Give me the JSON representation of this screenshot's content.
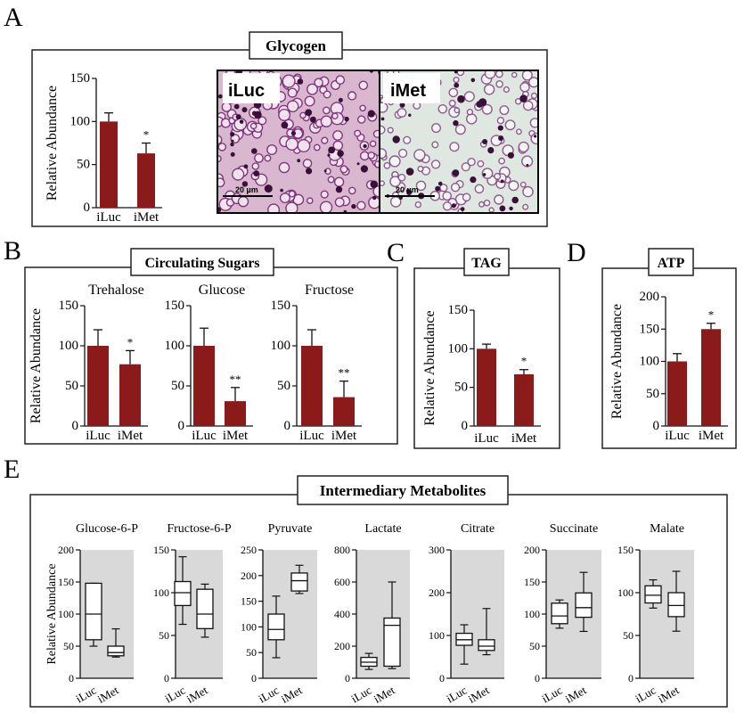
{
  "panels": {
    "A": {
      "letter": "A",
      "title": "Glycogen"
    },
    "B": {
      "letter": "B",
      "title": "Circulating Sugars"
    },
    "C": {
      "letter": "C",
      "title": "TAG"
    },
    "D": {
      "letter": "D",
      "title": "ATP"
    },
    "E": {
      "letter": "E",
      "title": "Intermediary Metabolites"
    }
  },
  "micrographs": {
    "left": {
      "label": "iLuc",
      "scale_bar": "20 µm"
    },
    "right": {
      "label": "iMet",
      "scale_bar": "20 µm"
    }
  },
  "colors": {
    "bar": "#8b1a1a",
    "box_bg": "#d9d9d9"
  },
  "chart_data": [
    {
      "id": "glycogen",
      "type": "bar",
      "title": "",
      "ylabel": "Relative Abundance",
      "categories": [
        "iLuc",
        "iMet"
      ],
      "values": [
        100,
        63
      ],
      "errors": [
        10,
        12
      ],
      "significance": [
        "",
        "*"
      ],
      "ylim": [
        0,
        150
      ],
      "yticks": [
        0,
        50,
        100,
        150
      ]
    },
    {
      "id": "trehalose",
      "type": "bar",
      "title": "Trehalose",
      "ylabel": "Relative Abundance",
      "categories": [
        "iLuc",
        "iMet"
      ],
      "values": [
        100,
        77
      ],
      "errors": [
        20,
        17
      ],
      "significance": [
        "",
        "*"
      ],
      "ylim": [
        0,
        150
      ],
      "yticks": [
        0,
        50,
        100,
        150
      ]
    },
    {
      "id": "glucose",
      "type": "bar",
      "title": "Glucose",
      "ylabel": "",
      "categories": [
        "iLuc",
        "iMet"
      ],
      "values": [
        100,
        31
      ],
      "errors": [
        22,
        17
      ],
      "significance": [
        "",
        "**"
      ],
      "ylim": [
        0,
        150
      ],
      "yticks": [
        0,
        50,
        100,
        150
      ]
    },
    {
      "id": "fructose",
      "type": "bar",
      "title": "Fructose",
      "ylabel": "",
      "categories": [
        "iLuc",
        "iMet"
      ],
      "values": [
        100,
        36
      ],
      "errors": [
        20,
        20
      ],
      "significance": [
        "",
        "**"
      ],
      "ylim": [
        0,
        150
      ],
      "yticks": [
        0,
        50,
        100,
        150
      ]
    },
    {
      "id": "tag",
      "type": "bar",
      "title": "",
      "ylabel": "Relative Abundance",
      "categories": [
        "iLuc",
        "iMet"
      ],
      "values": [
        100,
        67
      ],
      "errors": [
        6,
        6
      ],
      "significance": [
        "",
        "*"
      ],
      "ylim": [
        0,
        150
      ],
      "yticks": [
        0,
        50,
        100,
        150
      ]
    },
    {
      "id": "atp",
      "type": "bar",
      "title": "",
      "ylabel": "Relative Abundance",
      "categories": [
        "iLuc",
        "iMet"
      ],
      "values": [
        100,
        150
      ],
      "errors": [
        12,
        9
      ],
      "significance": [
        "",
        "*"
      ],
      "ylim": [
        0,
        200
      ],
      "yticks": [
        0,
        50,
        100,
        150,
        200
      ]
    },
    {
      "id": "glucose6p",
      "type": "box",
      "title": "Glucose-6-P",
      "ylabel": "Relative Abundance",
      "categories": [
        "iLuc",
        "iMet"
      ],
      "ylim": [
        0,
        200
      ],
      "yticks": [
        0,
        50,
        100,
        150,
        200
      ],
      "boxes": [
        {
          "min": 50,
          "q1": 60,
          "median": 100,
          "q3": 148,
          "max": 148
        },
        {
          "min": 33,
          "q1": 35,
          "median": 40,
          "q3": 50,
          "max": 77
        }
      ]
    },
    {
      "id": "fructose6p",
      "type": "box",
      "title": "Fructose-6-P",
      "ylabel": "",
      "categories": [
        "iLuc",
        "iMet"
      ],
      "ylim": [
        0,
        150
      ],
      "yticks": [
        0,
        50,
        100,
        150
      ],
      "boxes": [
        {
          "min": 63,
          "q1": 85,
          "median": 100,
          "q3": 113,
          "max": 142
        },
        {
          "min": 48,
          "q1": 58,
          "median": 75,
          "q3": 104,
          "max": 110
        }
      ]
    },
    {
      "id": "pyruvate",
      "type": "box",
      "title": "Pyruvate",
      "ylabel": "",
      "categories": [
        "iLuc",
        "iMet"
      ],
      "ylim": [
        0,
        250
      ],
      "yticks": [
        0,
        50,
        100,
        150,
        200,
        250
      ],
      "boxes": [
        {
          "min": 40,
          "q1": 75,
          "median": 95,
          "q3": 125,
          "max": 160
        },
        {
          "min": 165,
          "q1": 170,
          "median": 190,
          "q3": 205,
          "max": 220
        }
      ]
    },
    {
      "id": "lactate",
      "type": "box",
      "title": "Lactate",
      "ylabel": "",
      "categories": [
        "iLuc",
        "iMet"
      ],
      "ylim": [
        0,
        800
      ],
      "yticks": [
        0,
        200,
        400,
        600,
        800
      ],
      "boxes": [
        {
          "min": 55,
          "q1": 75,
          "median": 100,
          "q3": 130,
          "max": 155
        },
        {
          "min": 60,
          "q1": 75,
          "median": 330,
          "q3": 375,
          "max": 600
        }
      ]
    },
    {
      "id": "citrate",
      "type": "box",
      "title": "Citrate",
      "ylabel": "",
      "categories": [
        "iLuc",
        "iMet"
      ],
      "ylim": [
        0,
        300
      ],
      "yticks": [
        0,
        100,
        200,
        300
      ],
      "boxes": [
        {
          "min": 33,
          "q1": 77,
          "median": 90,
          "q3": 105,
          "max": 125
        },
        {
          "min": 55,
          "q1": 65,
          "median": 75,
          "q3": 90,
          "max": 163
        }
      ]
    },
    {
      "id": "succinate",
      "type": "box",
      "title": "Succinate",
      "ylabel": "",
      "categories": [
        "iLuc",
        "iMet"
      ],
      "ylim": [
        0,
        200
      ],
      "yticks": [
        0,
        50,
        100,
        150,
        200
      ],
      "boxes": [
        {
          "min": 78,
          "q1": 85,
          "median": 97,
          "q3": 117,
          "max": 122
        },
        {
          "min": 73,
          "q1": 95,
          "median": 110,
          "q3": 133,
          "max": 165
        }
      ]
    },
    {
      "id": "malate",
      "type": "box",
      "title": "Malate",
      "ylabel": "",
      "categories": [
        "iLuc",
        "iMet"
      ],
      "ylim": [
        0,
        150
      ],
      "yticks": [
        0,
        50,
        100,
        150
      ],
      "boxes": [
        {
          "min": 82,
          "q1": 88,
          "median": 97,
          "q3": 108,
          "max": 115
        },
        {
          "min": 55,
          "q1": 72,
          "median": 85,
          "q3": 100,
          "max": 125
        }
      ]
    }
  ]
}
